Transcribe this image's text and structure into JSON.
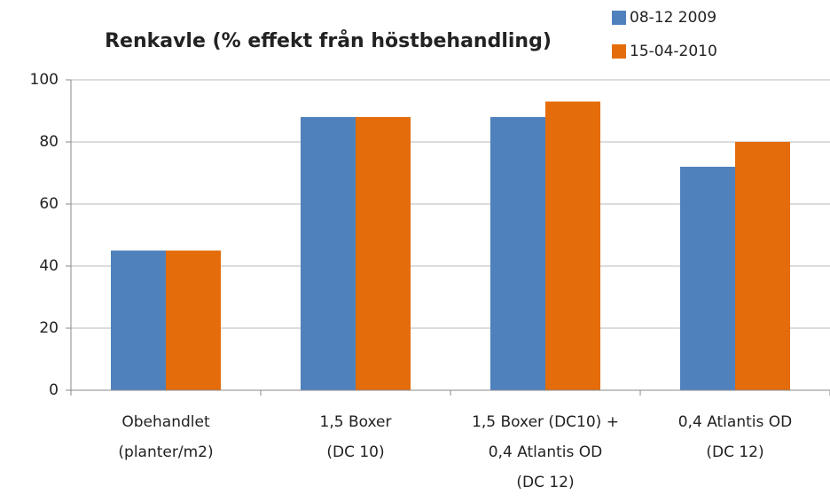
{
  "chart_data": {
    "type": "bar",
    "title": "Renkavle (% effekt från höstbehandling)",
    "categories": [
      [
        "Obehandlet",
        "(planter/m2)"
      ],
      [
        "1,5 Boxer",
        "(DC 10)"
      ],
      [
        "1,5 Boxer (DC10) +",
        "0,4 Atlantis OD",
        "(DC 12)"
      ],
      [
        "0,4 Atlantis OD",
        "(DC 12)"
      ]
    ],
    "series": [
      {
        "name": "08-12 2009",
        "color": "#4f81bd",
        "values": [
          45,
          88,
          88,
          72
        ]
      },
      {
        "name": "15-04-2010",
        "color": "#e46c0a",
        "values": [
          45,
          88,
          93,
          80
        ]
      }
    ],
    "ylim": [
      0,
      100
    ],
    "yticks": [
      0,
      20,
      40,
      60,
      80,
      100
    ],
    "grid": true,
    "legend": "top-right"
  }
}
